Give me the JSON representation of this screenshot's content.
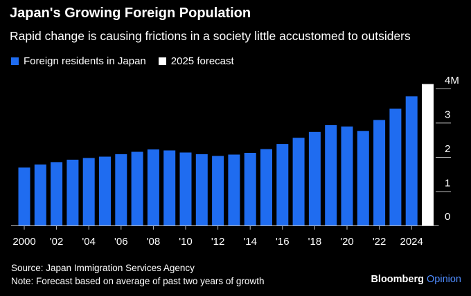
{
  "title": "Japan's Growing Foreign Population",
  "subtitle": "Rapid change is causing frictions in a society little accustomed to outsiders",
  "legend": [
    {
      "label": "Foreign residents in Japan",
      "color": "#1f6cf0"
    },
    {
      "label": "2025 forecast",
      "color": "#ffffff"
    }
  ],
  "footer": {
    "source": "Source: Japan Immigration Services Agency",
    "note": "Note: Forecast based on average of past two years of growth"
  },
  "brand": {
    "name": "Bloomberg",
    "suffix": "Opinion"
  },
  "chart_data": {
    "type": "bar",
    "x": [
      2000,
      2001,
      2002,
      2003,
      2004,
      2005,
      2006,
      2007,
      2008,
      2009,
      2010,
      2011,
      2012,
      2013,
      2014,
      2015,
      2016,
      2017,
      2018,
      2019,
      2020,
      2021,
      2022,
      2023,
      2024,
      2025
    ],
    "x_tick_labels": [
      "2000",
      "'02",
      "'04",
      "'06",
      "'08",
      "'10",
      "'12",
      "'14",
      "'16",
      "'18",
      "'20",
      "'22",
      "2024"
    ],
    "x_tick_years": [
      2000,
      2002,
      2004,
      2006,
      2008,
      2010,
      2012,
      2014,
      2016,
      2018,
      2020,
      2022,
      2024
    ],
    "series": [
      {
        "name": "Foreign residents in Japan",
        "color": "#1f6cf0",
        "x": [
          2000,
          2001,
          2002,
          2003,
          2004,
          2005,
          2006,
          2007,
          2008,
          2009,
          2010,
          2011,
          2012,
          2013,
          2014,
          2015,
          2016,
          2017,
          2018,
          2019,
          2020,
          2021,
          2022,
          2023,
          2024
        ],
        "values": [
          1.69,
          1.78,
          1.85,
          1.92,
          1.97,
          2.01,
          2.08,
          2.15,
          2.22,
          2.19,
          2.13,
          2.08,
          2.03,
          2.07,
          2.12,
          2.23,
          2.38,
          2.56,
          2.73,
          2.93,
          2.89,
          2.76,
          3.08,
          3.41,
          3.77
        ]
      },
      {
        "name": "2025 forecast",
        "color": "#ffffff",
        "x": [
          2025
        ],
        "values": [
          4.13
        ]
      }
    ],
    "y_ticks": [
      0,
      1,
      2,
      3,
      4
    ],
    "y_tick_labels": [
      "0",
      "1",
      "2",
      "3",
      "4M"
    ],
    "ylim": [
      0,
      4.2
    ],
    "xlabel": "",
    "ylabel": "",
    "grid": false,
    "legend_position": "top-left"
  }
}
